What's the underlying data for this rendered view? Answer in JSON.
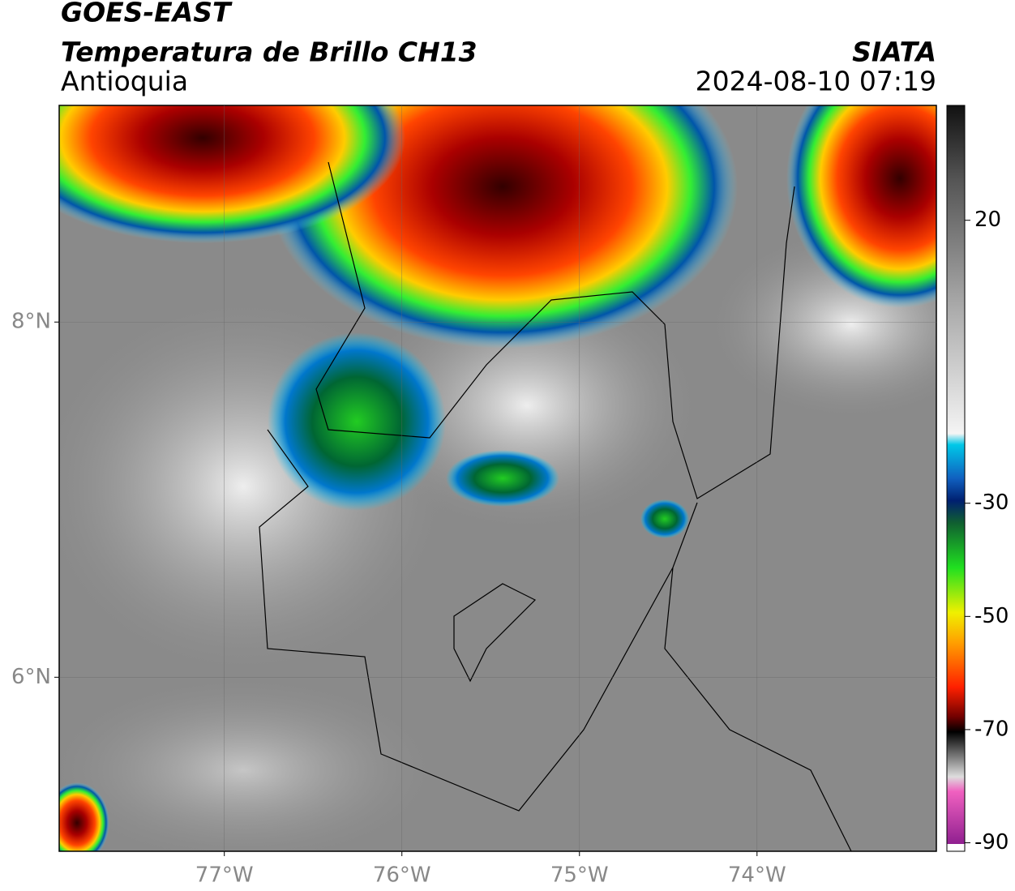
{
  "header": {
    "title": "GOES-EAST",
    "subtitle": "Temperatura de Brillo CH13",
    "agency": "SIATA",
    "region": "Antioquia",
    "datetime": "2024-08-10 07:19"
  },
  "map": {
    "xlim": [
      -77.93,
      -72.99
    ],
    "ylim": [
      5.02,
      9.22
    ],
    "xticks": [
      {
        "value": -77,
        "label": "77°W"
      },
      {
        "value": -76,
        "label": "76°W"
      },
      {
        "value": -75,
        "label": "75°W"
      },
      {
        "value": -74,
        "label": "74°W"
      }
    ],
    "yticks": [
      {
        "value": 8,
        "label": "8°N"
      },
      {
        "value": 6,
        "label": "6°N"
      }
    ],
    "grid": true
  },
  "colorbar": {
    "lim": [
      -91.5,
      40.3
    ],
    "ticks": [
      20,
      -30,
      -50,
      -70,
      -90
    ]
  }
}
